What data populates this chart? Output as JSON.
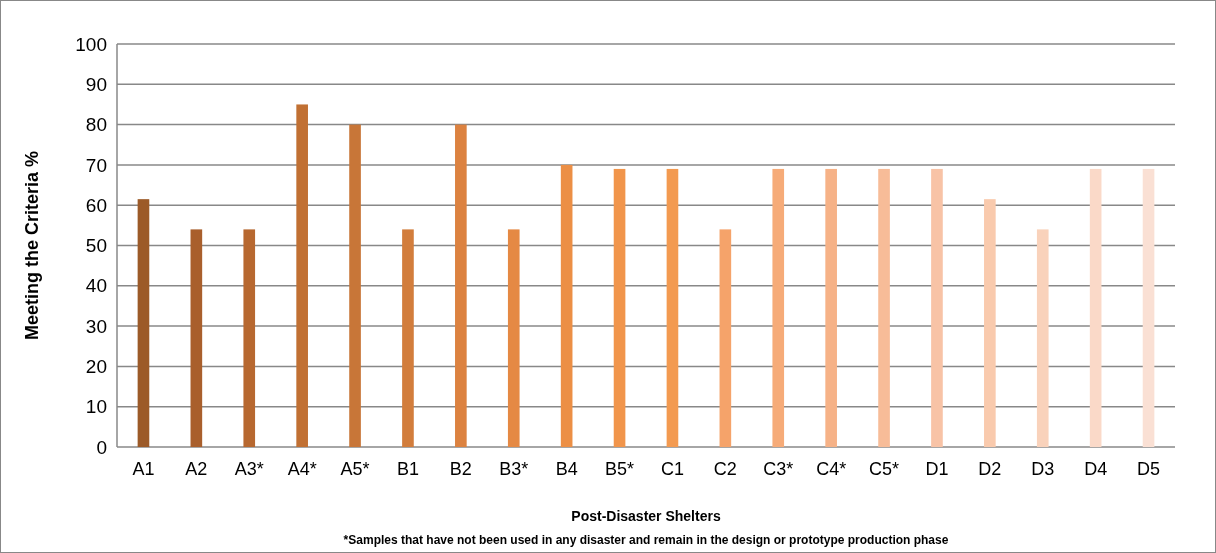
{
  "chart_data": {
    "type": "bar",
    "xlabel": "Post-Disaster Shelters",
    "ylabel": "Meeting the Criteria %",
    "annotations": [
      "*Samples that have not been used in any disaster and remain in the design or prototype production phase"
    ],
    "categories": [
      "A1",
      "A2",
      "A3*",
      "A4*",
      "A5*",
      "B1",
      "B2",
      "B3*",
      "B4",
      "B5*",
      "C1",
      "C2",
      "C3*",
      "C4*",
      "C5*",
      "D1",
      "D2",
      "D3",
      "D4",
      "D5"
    ],
    "values": [
      61.5,
      54,
      54,
      85,
      80,
      54,
      80,
      54,
      70,
      69,
      69,
      54,
      69,
      69,
      69,
      69,
      61.5,
      54,
      69,
      69
    ],
    "colors": [
      "#9c5a28",
      "#a95f2c",
      "#b76830",
      "#c17033",
      "#c87638",
      "#d27d3c",
      "#dc8240",
      "#e58944",
      "#ec8f45",
      "#f1954b",
      "#f39a50",
      "#f5a36a",
      "#f6ab78",
      "#f6b287",
      "#f7bc98",
      "#f8c3a6",
      "#f9caad",
      "#f9d2bb",
      "#fad9c8",
      "#fae0d4"
    ],
    "ylim": [
      0,
      100
    ],
    "yticks": [
      0,
      10,
      20,
      30,
      40,
      50,
      60,
      70,
      80,
      90,
      100
    ],
    "grid": "y"
  }
}
